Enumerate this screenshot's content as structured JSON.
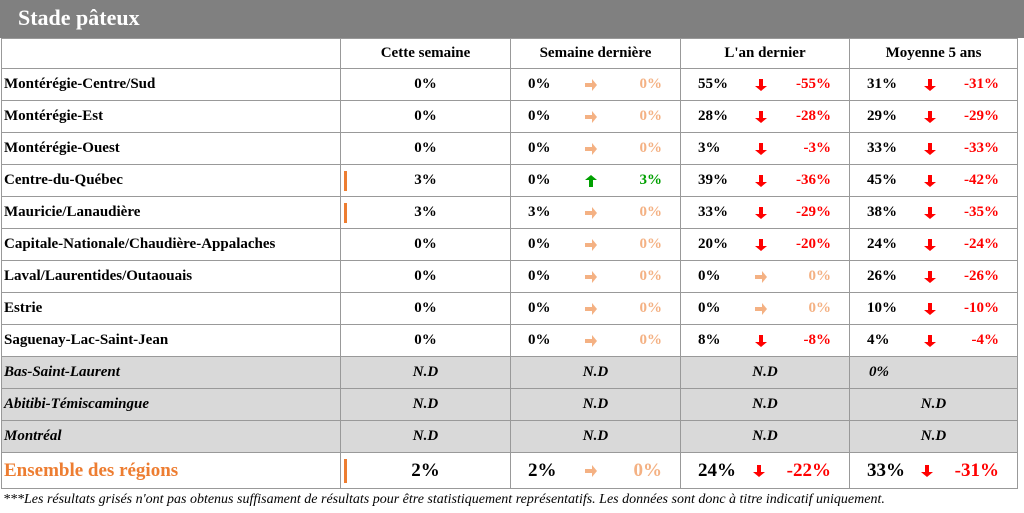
{
  "title": "Stade pâteux",
  "headers": [
    "Cette semaine",
    "Semaine dernière",
    "L'an dernier",
    "Moyenne 5 ans"
  ],
  "colors": {
    "neutral": "#f4b183",
    "down": "#ff0000",
    "up": "#00a000",
    "accent": "#ed7d31",
    "grey": "#d9d9d9"
  },
  "rows": [
    {
      "region": "Montérégie-Centre/Sud",
      "cw": "0%",
      "lw": [
        "0%",
        "neutral",
        "0%"
      ],
      "ly": [
        "55%",
        "down",
        "-55%"
      ],
      "m5": [
        "31%",
        "down",
        "-31%"
      ]
    },
    {
      "region": "Montérégie-Est",
      "cw": "0%",
      "lw": [
        "0%",
        "neutral",
        "0%"
      ],
      "ly": [
        "28%",
        "down",
        "-28%"
      ],
      "m5": [
        "29%",
        "down",
        "-29%"
      ]
    },
    {
      "region": "Montérégie-Ouest",
      "cw": "0%",
      "lw": [
        "0%",
        "neutral",
        "0%"
      ],
      "ly": [
        "3%",
        "down",
        "-3%"
      ],
      "m5": [
        "33%",
        "down",
        "-33%"
      ]
    },
    {
      "region": "Centre-du-Québec",
      "cw": "3%",
      "lw": [
        "0%",
        "up",
        "3%"
      ],
      "ly": [
        "39%",
        "down",
        "-36%"
      ],
      "m5": [
        "45%",
        "down",
        "-42%"
      ]
    },
    {
      "region": "Mauricie/Lanaudière",
      "cw": "3%",
      "lw": [
        "3%",
        "neutral",
        "0%"
      ],
      "ly": [
        "33%",
        "down",
        "-29%"
      ],
      "m5": [
        "38%",
        "down",
        "-35%"
      ]
    },
    {
      "region": "Capitale-Nationale/Chaudière-Appalaches",
      "cw": "0%",
      "lw": [
        "0%",
        "neutral",
        "0%"
      ],
      "ly": [
        "20%",
        "down",
        "-20%"
      ],
      "m5": [
        "24%",
        "down",
        "-24%"
      ]
    },
    {
      "region": "Laval/Laurentides/Outaouais",
      "cw": "0%",
      "lw": [
        "0%",
        "neutral",
        "0%"
      ],
      "ly": [
        "0%",
        "neutral",
        "0%"
      ],
      "m5": [
        "26%",
        "down",
        "-26%"
      ]
    },
    {
      "region": "Estrie",
      "cw": "0%",
      "lw": [
        "0%",
        "neutral",
        "0%"
      ],
      "ly": [
        "0%",
        "neutral",
        "0%"
      ],
      "m5": [
        "10%",
        "down",
        "-10%"
      ]
    },
    {
      "region": "Saguenay-Lac-Saint-Jean",
      "cw": "0%",
      "lw": [
        "0%",
        "neutral",
        "0%"
      ],
      "ly": [
        "8%",
        "down",
        "-8%"
      ],
      "m5": [
        "4%",
        "down",
        "-4%"
      ]
    }
  ],
  "grey_rows": [
    {
      "region": "Bas-Saint-Laurent",
      "cw": "N.D",
      "lw": "N.D",
      "ly": "N.D",
      "m5": "0%"
    },
    {
      "region": "Abitibi-Témiscamingue",
      "cw": "N.D",
      "lw": "N.D",
      "ly": "N.D",
      "m5": "N.D"
    },
    {
      "region": "Montréal",
      "cw": "N.D",
      "lw": "N.D",
      "ly": "N.D",
      "m5": "N.D"
    }
  ],
  "total": {
    "region": "Ensemble des régions",
    "cw": "2%",
    "lw": [
      "2%",
      "neutral",
      "0%"
    ],
    "ly": [
      "24%",
      "down",
      "-22%"
    ],
    "m5": [
      "33%",
      "down",
      "-31%"
    ]
  },
  "footnote": "***Les résultats grisés n'ont pas obtenus suffisament de résultats pour être statistiquement représentatifs. Les données sont donc à titre indicatif uniquement."
}
